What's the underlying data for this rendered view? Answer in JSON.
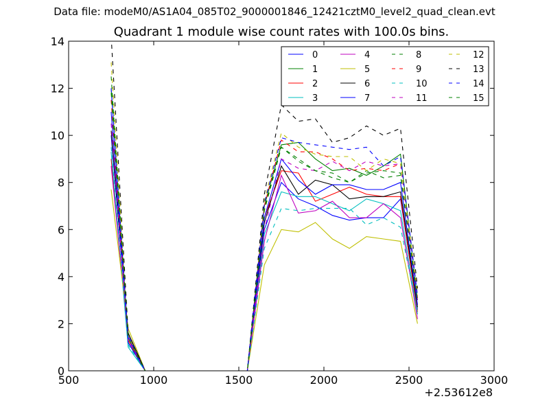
{
  "header": {
    "data_file": "Data file: modeM0/AS1A04_085T02_9000001846_12421cztM0_level2_quad_clean.evt"
  },
  "chart_data": {
    "type": "line",
    "title": "Quadrant 1 module wise count rates with 100.0s bins.",
    "xlabel": "",
    "ylabel": "",
    "x_offset_label": "+2.53612e8",
    "xlim": [
      500,
      3000
    ],
    "ylim": [
      0,
      14
    ],
    "xticks": [
      500,
      1000,
      1500,
      2000,
      2500,
      3000
    ],
    "yticks": [
      0,
      2,
      4,
      6,
      8,
      10,
      12,
      14
    ],
    "grid": false,
    "legend": {
      "placement": "top-right",
      "columns": 4
    },
    "x": [
      750,
      850,
      950,
      1050,
      1150,
      1250,
      1350,
      1450,
      1550,
      1650,
      1750,
      1850,
      1950,
      2050,
      2150,
      2250,
      2350,
      2450,
      2550
    ],
    "series": [
      {
        "name": "0",
        "color": "#0000ff",
        "style": "solid",
        "values": [
          10.0,
          1.5,
          0,
          0,
          0,
          0,
          0,
          0,
          0,
          6.0,
          8.0,
          7.3,
          7.0,
          6.6,
          6.4,
          6.5,
          6.5,
          7.3,
          2.6
        ]
      },
      {
        "name": "1",
        "color": "#008000",
        "style": "solid",
        "values": [
          12.0,
          1.2,
          0,
          0,
          0,
          0,
          0,
          0,
          0,
          7.0,
          9.6,
          9.7,
          9.0,
          8.5,
          8.6,
          8.3,
          8.7,
          9.2,
          3.0
        ]
      },
      {
        "name": "2",
        "color": "#ff0000",
        "style": "solid",
        "values": [
          9.0,
          1.3,
          0,
          0,
          0,
          0,
          0,
          0,
          0,
          6.5,
          8.5,
          8.4,
          7.2,
          7.5,
          7.8,
          7.5,
          7.4,
          7.4,
          2.5
        ]
      },
      {
        "name": "3",
        "color": "#00bfbf",
        "style": "solid",
        "values": [
          9.3,
          1.0,
          0,
          0,
          0,
          0,
          0,
          0,
          0,
          5.8,
          7.6,
          7.4,
          7.4,
          7.1,
          6.8,
          7.3,
          7.1,
          6.8,
          2.4
        ]
      },
      {
        "name": "4",
        "color": "#bf00bf",
        "style": "solid",
        "values": [
          8.7,
          1.4,
          0,
          0,
          0,
          0,
          0,
          0,
          0,
          5.5,
          8.3,
          6.7,
          6.8,
          7.2,
          6.5,
          6.5,
          7.1,
          6.5,
          2.2
        ]
      },
      {
        "name": "5",
        "color": "#bfbf00",
        "style": "solid",
        "values": [
          7.7,
          1.8,
          0,
          0,
          0,
          0,
          0,
          0,
          0,
          4.5,
          6.0,
          5.9,
          6.3,
          5.6,
          5.2,
          5.7,
          5.6,
          5.5,
          2.0
        ]
      },
      {
        "name": "6",
        "color": "#000000",
        "style": "solid",
        "values": [
          10.2,
          1.6,
          0,
          0,
          0,
          0,
          0,
          0,
          0,
          6.3,
          8.7,
          7.5,
          8.1,
          7.9,
          7.3,
          7.4,
          7.4,
          7.6,
          2.7
        ]
      },
      {
        "name": "7",
        "color": "#0000ff",
        "style": "solid",
        "values": [
          11.0,
          1.2,
          0,
          0,
          0,
          0,
          0,
          0,
          0,
          6.5,
          9.0,
          8.1,
          7.5,
          7.9,
          7.9,
          7.7,
          7.7,
          8.0,
          2.8
        ]
      },
      {
        "name": "8",
        "color": "#008000",
        "style": "dashed",
        "values": [
          12.5,
          1.4,
          0,
          0,
          0,
          0,
          0,
          0,
          0,
          6.8,
          9.5,
          9.0,
          8.5,
          8.4,
          8.0,
          8.5,
          8.2,
          8.3,
          3.0
        ]
      },
      {
        "name": "9",
        "color": "#ff0000",
        "style": "dashed",
        "values": [
          11.5,
          1.3,
          0,
          0,
          0,
          0,
          0,
          0,
          0,
          7.0,
          9.8,
          9.3,
          9.3,
          9.0,
          8.5,
          8.6,
          8.5,
          8.8,
          3.1
        ]
      },
      {
        "name": "10",
        "color": "#00bfbf",
        "style": "dashed",
        "values": [
          9.5,
          1.1,
          0,
          0,
          0,
          0,
          0,
          0,
          0,
          5.2,
          6.9,
          6.8,
          6.9,
          6.9,
          6.9,
          6.2,
          6.5,
          6.1,
          2.5
        ]
      },
      {
        "name": "11",
        "color": "#bf00bf",
        "style": "dashed",
        "values": [
          10.5,
          1.3,
          0,
          0,
          0,
          0,
          0,
          0,
          0,
          6.0,
          9.0,
          8.6,
          8.5,
          8.9,
          8.5,
          8.9,
          8.7,
          8.8,
          3.0
        ]
      },
      {
        "name": "12",
        "color": "#bfbf00",
        "style": "dashed",
        "values": [
          13.1,
          1.5,
          0,
          0,
          0,
          0,
          0,
          0,
          0,
          7.2,
          10.1,
          9.5,
          9.2,
          9.1,
          9.1,
          8.5,
          9.0,
          8.8,
          3.3
        ]
      },
      {
        "name": "13",
        "color": "#000000",
        "style": "dashed",
        "values": [
          14.2,
          1.6,
          0,
          0,
          0,
          0,
          0,
          0,
          0,
          7.5,
          11.3,
          10.6,
          10.7,
          9.7,
          9.9,
          10.4,
          10.0,
          10.3,
          3.5
        ]
      },
      {
        "name": "14",
        "color": "#0000ff",
        "style": "dashed",
        "values": [
          12.0,
          1.4,
          0,
          0,
          0,
          0,
          0,
          0,
          0,
          7.1,
          9.9,
          9.7,
          9.6,
          9.5,
          9.4,
          9.5,
          8.7,
          9.1,
          3.2
        ]
      },
      {
        "name": "15",
        "color": "#008000",
        "style": "dashed",
        "values": [
          11.8,
          1.4,
          0,
          0,
          0,
          0,
          0,
          0,
          0,
          6.9,
          9.5,
          8.9,
          8.5,
          8.2,
          8.0,
          8.4,
          8.5,
          8.4,
          3.0
        ]
      }
    ]
  }
}
